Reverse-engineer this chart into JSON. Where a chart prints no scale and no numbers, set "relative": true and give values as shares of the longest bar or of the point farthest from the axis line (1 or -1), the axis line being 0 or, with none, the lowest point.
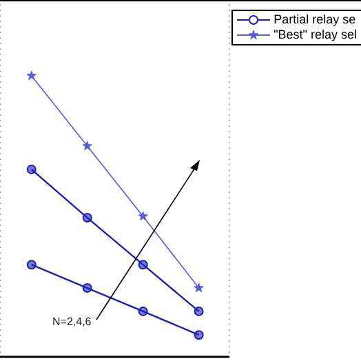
{
  "chart_data": {
    "type": "line",
    "relative": true,
    "categories": [
      null,
      null,
      null,
      null
    ],
    "series": [
      {
        "name": "Partial relay se",
        "color": "#2020b0",
        "values": [
          0.328,
          0.245,
          0.162,
          0.078
        ],
        "marker": "circle"
      },
      {
        "color": "#2020b0",
        "values": [
          0.667,
          0.495,
          0.328,
          0.162
        ],
        "marker": "circle"
      },
      {
        "name": "\"Best\" relay sel",
        "color": "#5a5ad8",
        "values": [
          1,
          0.75,
          0.5,
          0.245
        ],
        "marker": "star"
      }
    ],
    "annotations": [
      "N=2,4,6"
    ],
    "grid": "x",
    "legend": "top right",
    "line_style": "solid"
  }
}
